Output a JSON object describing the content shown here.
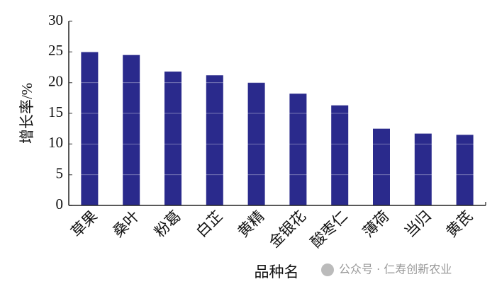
{
  "chart_data": {
    "type": "bar",
    "y_label": "增长率/%",
    "x_label": "品种名",
    "categories": [
      "草果",
      "桑叶",
      "粉葛",
      "白芷",
      "黄精",
      "金银花",
      "酸枣仁",
      "薄荷",
      "当归",
      "黄芪"
    ],
    "values": [
      25,
      24.5,
      21.8,
      21.2,
      20,
      18.2,
      16.3,
      12.5,
      11.7,
      11.5
    ],
    "color": "#2a2a8c",
    "ylim": [
      0,
      30
    ],
    "yticks": [
      0,
      5,
      10,
      15,
      20,
      25,
      30
    ],
    "grid": true
  },
  "watermark": "公众号 · 仁寿创新农业"
}
